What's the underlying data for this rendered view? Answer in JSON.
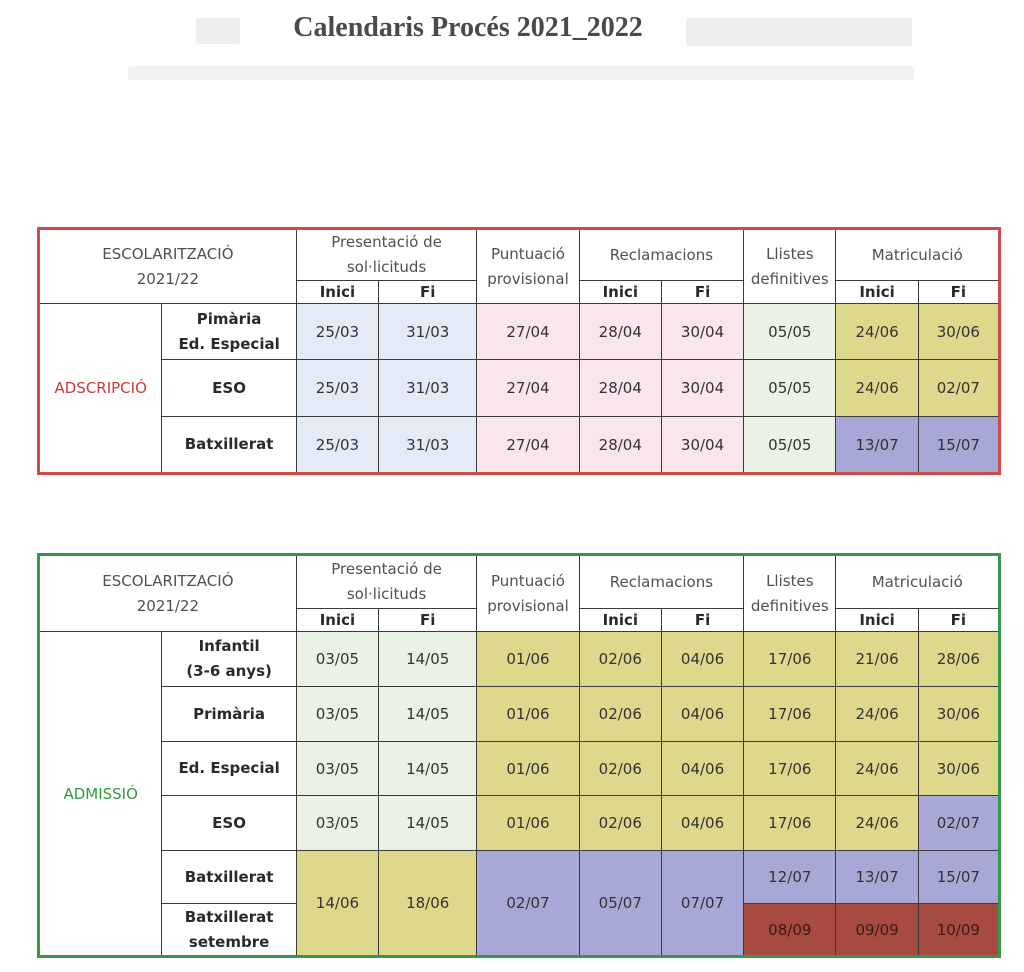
{
  "title": "Calendaris Procés 2021_2022",
  "colors": {
    "adscripcio_border": "#d24a4a",
    "admissio_border": "#38984a",
    "blue": "#e4ebf6",
    "pink": "#f9e6ea",
    "mint": "#eaf2e4",
    "yellow": "#ded88c",
    "purple": "#a8a8d6",
    "brown": "#a74a40"
  },
  "headers": {
    "escolaritzacio": "ESCOLARITZACIÓ",
    "year": "2021/22",
    "presentacio_1": "Presentació de",
    "presentacio_2": "sol·licituds",
    "puntuacio_1": "Puntuació",
    "puntuacio_2": "provisional",
    "reclamacions": "Reclamacions",
    "llistes_1": "Llistes",
    "llistes_2": "definitives",
    "matriculacio": "Matriculació",
    "inici": "Inici",
    "fi": "Fi"
  },
  "adscripcio": {
    "label": "ADSCRIPCIÓ",
    "rows": [
      {
        "level_1": "Pimària",
        "level_2": "Ed. Especial",
        "pres_inici": "25/03",
        "pres_fi": "31/03",
        "puntuacio": "27/04",
        "recl_inici": "28/04",
        "recl_fi": "30/04",
        "llistes": "05/05",
        "mat_inici": "24/06",
        "mat_fi": "30/06"
      },
      {
        "level_1": "ESO",
        "pres_inici": "25/03",
        "pres_fi": "31/03",
        "puntuacio": "27/04",
        "recl_inici": "28/04",
        "recl_fi": "30/04",
        "llistes": "05/05",
        "mat_inici": "24/06",
        "mat_fi": "02/07"
      },
      {
        "level_1": "Batxillerat",
        "pres_inici": "25/03",
        "pres_fi": "31/03",
        "puntuacio": "27/04",
        "recl_inici": "28/04",
        "recl_fi": "30/04",
        "llistes": "05/05",
        "mat_inici": "13/07",
        "mat_fi": "15/07"
      }
    ]
  },
  "admissio": {
    "label": "ADMISSIÓ",
    "rows": [
      {
        "level_1": "Infantil",
        "level_2": "(3-6 anys)",
        "pres_inici": "03/05",
        "pres_fi": "14/05",
        "puntuacio": "01/06",
        "recl_inici": "02/06",
        "recl_fi": "04/06",
        "llistes": "17/06",
        "mat_inici": "21/06",
        "mat_fi": "28/06"
      },
      {
        "level_1": "Primària",
        "pres_inici": "03/05",
        "pres_fi": "14/05",
        "puntuacio": "01/06",
        "recl_inici": "02/06",
        "recl_fi": "04/06",
        "llistes": "17/06",
        "mat_inici": "24/06",
        "mat_fi": "30/06"
      },
      {
        "level_1": "Ed. Especial",
        "pres_inici": "03/05",
        "pres_fi": "14/05",
        "puntuacio": "01/06",
        "recl_inici": "02/06",
        "recl_fi": "04/06",
        "llistes": "17/06",
        "mat_inici": "24/06",
        "mat_fi": "30/06"
      },
      {
        "level_1": "ESO",
        "pres_inici": "03/05",
        "pres_fi": "14/05",
        "puntuacio": "01/06",
        "recl_inici": "02/06",
        "recl_fi": "04/06",
        "llistes": "17/06",
        "mat_inici": "24/06",
        "mat_fi": "02/07"
      },
      {
        "level_1": "Batxillerat",
        "llistes": "12/07",
        "mat_inici": "13/07",
        "mat_fi": "15/07"
      },
      {
        "level_1": "Batxillerat",
        "level_2": "setembre",
        "llistes": "08/09",
        "mat_inici": "09/09",
        "mat_fi": "10/09"
      }
    ],
    "batxillerat_shared": {
      "pres_inici": "14/06",
      "pres_fi": "18/06",
      "puntuacio": "02/07",
      "recl_inici": "05/07",
      "recl_fi": "07/07"
    }
  }
}
